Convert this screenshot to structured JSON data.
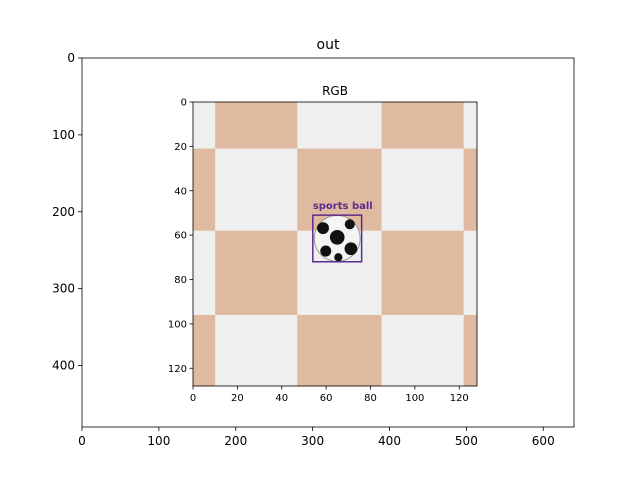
{
  "chart_data": [
    {
      "type": "image",
      "title": "out",
      "xlim": [
        0,
        640
      ],
      "ylim": [
        480,
        0
      ],
      "x_ticks": [
        "0",
        "100",
        "200",
        "300",
        "400",
        "500",
        "600"
      ],
      "y_ticks": [
        "0",
        "100",
        "200",
        "300",
        "400"
      ],
      "x_tick_values": [
        0,
        100,
        200,
        300,
        400,
        500,
        600
      ],
      "y_tick_values": [
        0,
        100,
        200,
        300,
        400
      ]
    },
    {
      "type": "image",
      "title": "RGB",
      "xlim": [
        0,
        128
      ],
      "ylim": [
        128,
        0
      ],
      "x_ticks": [
        "0",
        "20",
        "40",
        "60",
        "80",
        "100",
        "120"
      ],
      "y_ticks": [
        "0",
        "20",
        "40",
        "60",
        "80",
        "100",
        "120"
      ],
      "x_tick_values": [
        0,
        20,
        40,
        60,
        80,
        100,
        120
      ],
      "y_tick_values": [
        0,
        20,
        40,
        60,
        80,
        100,
        120
      ],
      "checker_colors": {
        "light": "#efefef",
        "dark": "#e0b9a1"
      },
      "detections": [
        {
          "label": "sports ball",
          "x0": 54,
          "y0": 51,
          "x1": 76,
          "y1": 72,
          "color": "#5b2d8a"
        }
      ]
    }
  ]
}
